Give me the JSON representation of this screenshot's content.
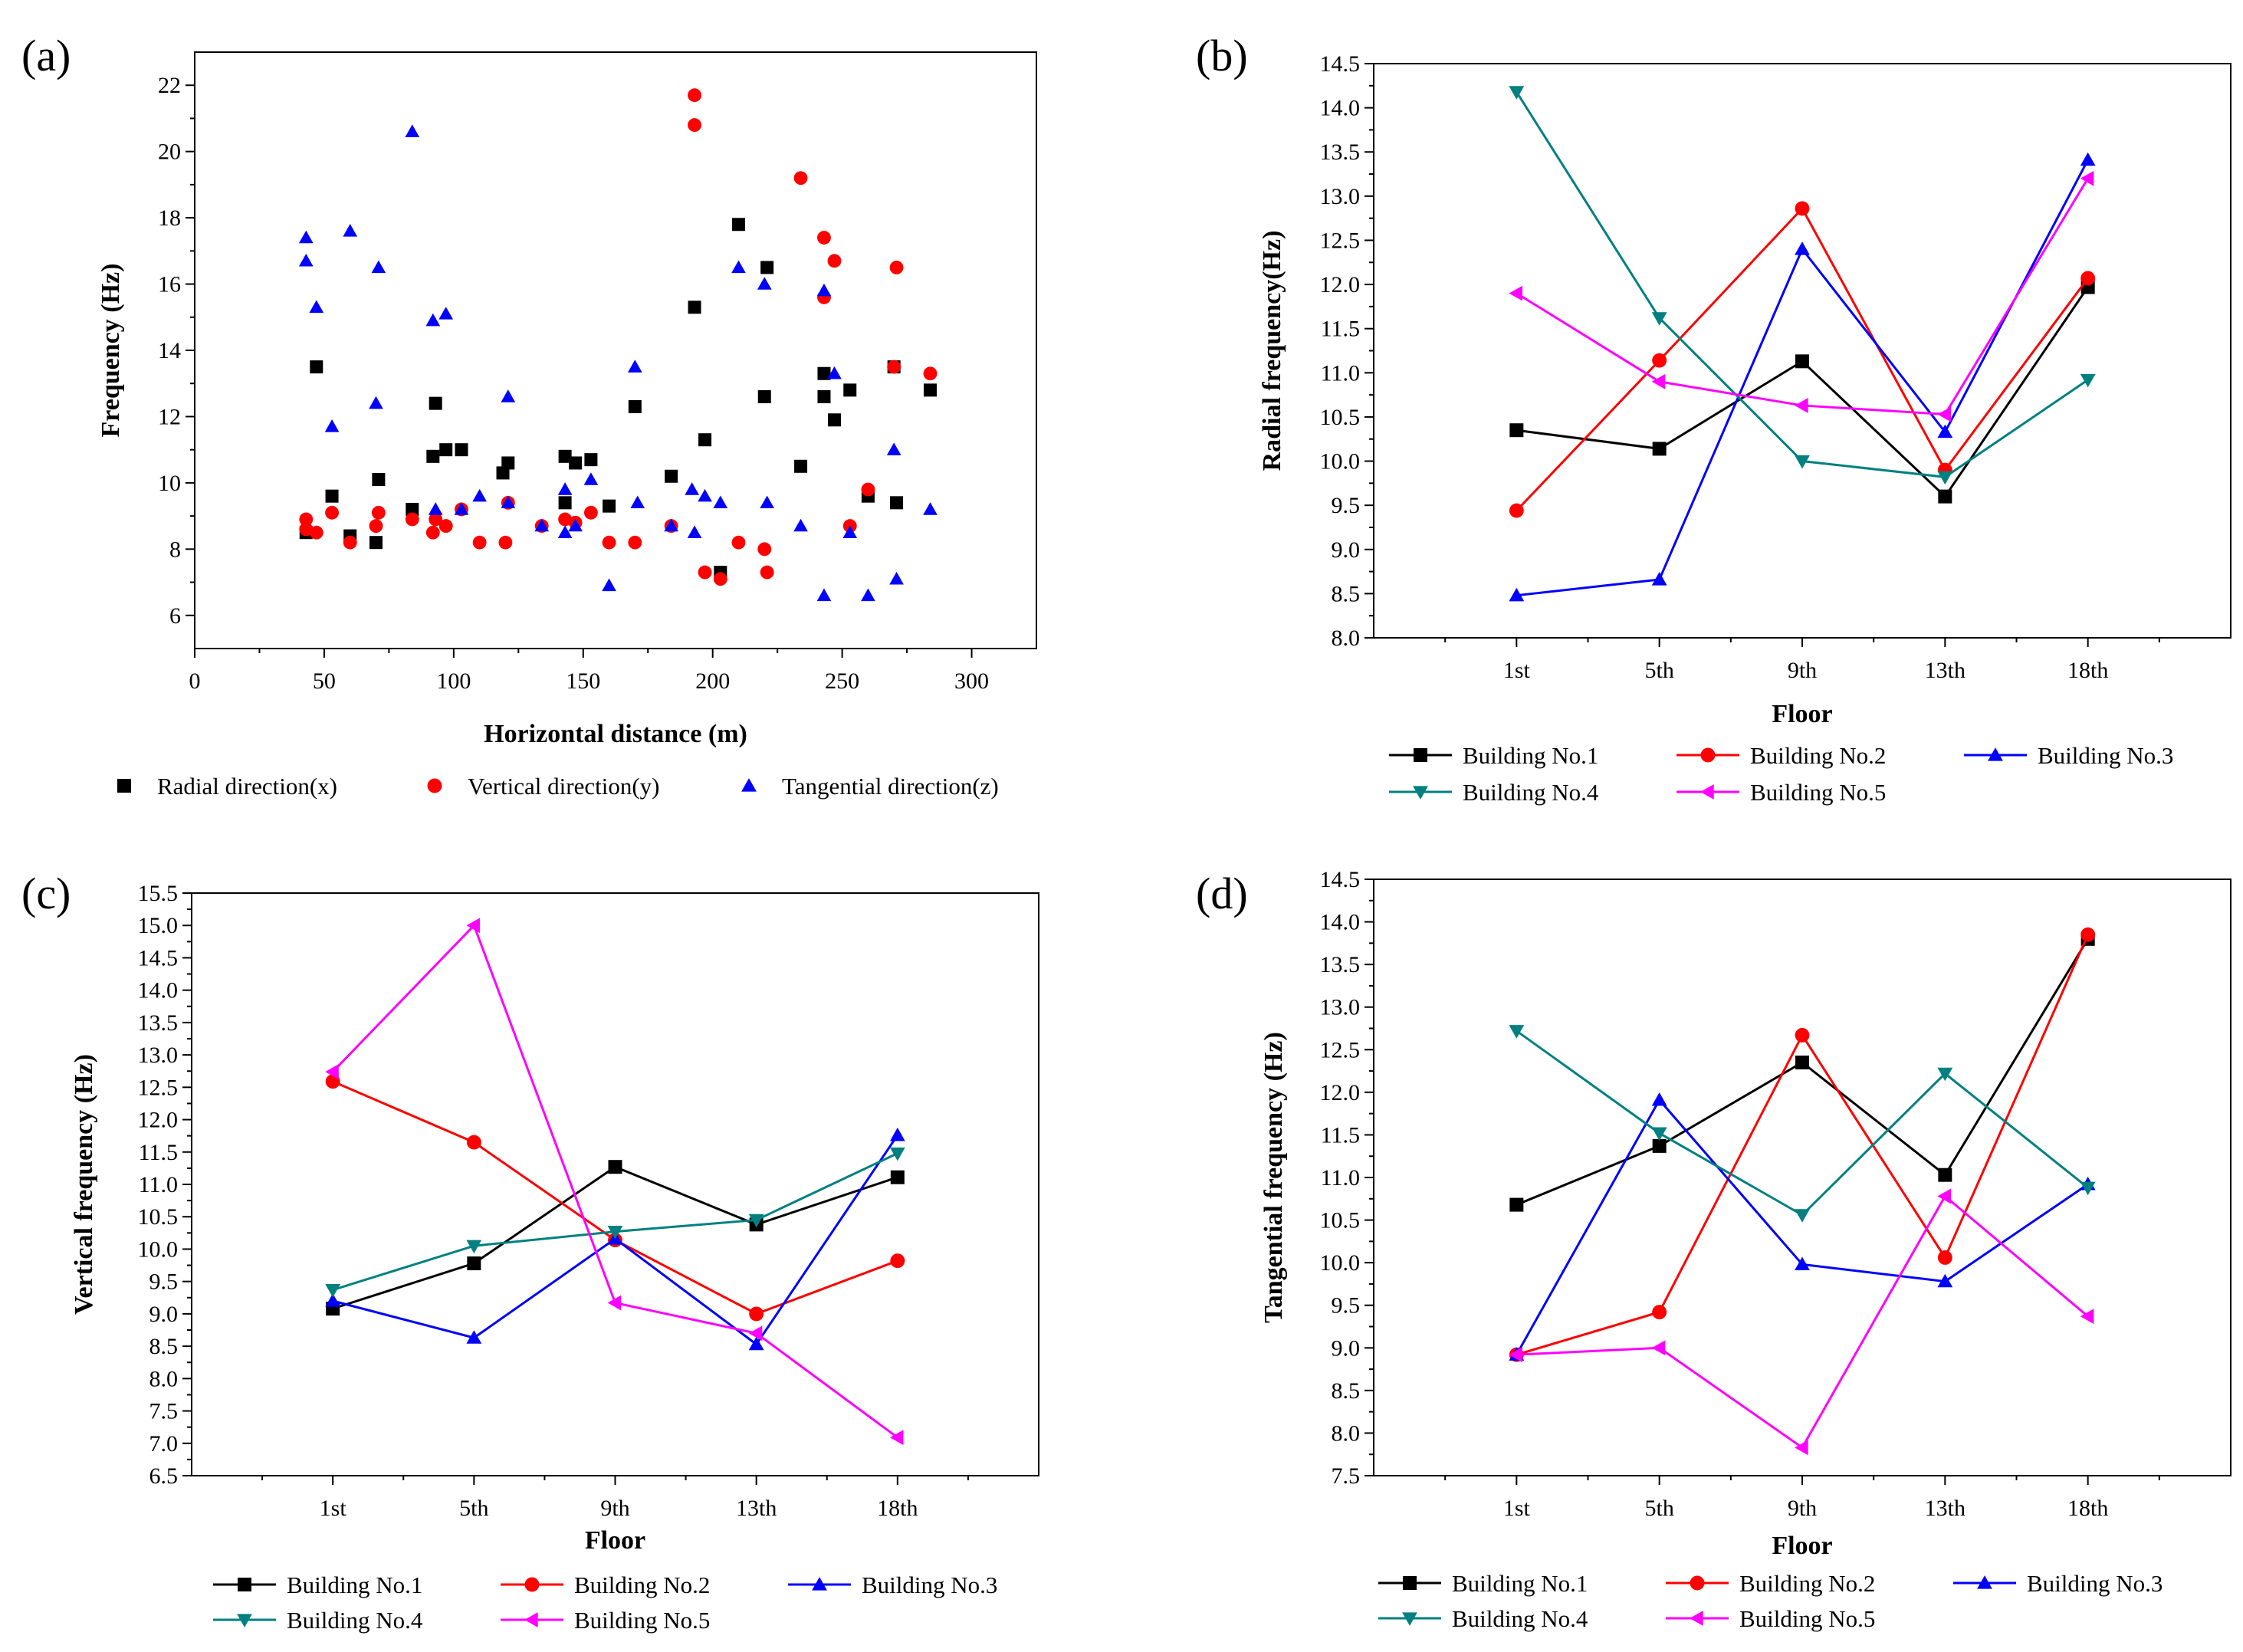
{
  "chart_data": [
    {
      "id": "a",
      "panel_label": "(a)",
      "type": "scatter",
      "xlabel": "Horizontal distance (m)",
      "ylabel": "Frequency (Hz)",
      "xlim": [
        0,
        325
      ],
      "ylim": [
        5,
        23
      ],
      "xticks": [
        "0",
        "50",
        "100",
        "150",
        "200",
        "250",
        "300"
      ],
      "yticks": [
        "6",
        "8",
        "10",
        "12",
        "14",
        "16",
        "18",
        "20",
        "22"
      ],
      "legend_position": "bottom",
      "series": [
        {
          "name": "Radial direction(x)",
          "color": "#000000",
          "marker": "square",
          "points": [
            [
              43,
              8.5
            ],
            [
              47,
              13.5
            ],
            [
              53,
              9.6
            ],
            [
              60,
              8.4
            ],
            [
              70,
              8.2
            ],
            [
              71,
              10.1
            ],
            [
              84,
              9.2
            ],
            [
              92,
              10.8
            ],
            [
              93,
              12.4
            ],
            [
              97,
              11.0
            ],
            [
              103,
              11.0
            ],
            [
              119,
              10.3
            ],
            [
              121,
              10.6
            ],
            [
              143,
              10.8
            ],
            [
              143,
              9.4
            ],
            [
              147,
              10.6
            ],
            [
              153,
              10.7
            ],
            [
              160,
              9.3
            ],
            [
              170,
              12.3
            ],
            [
              184,
              10.2
            ],
            [
              193,
              15.3
            ],
            [
              197,
              11.3
            ],
            [
              203,
              7.3
            ],
            [
              210,
              17.8
            ],
            [
              220,
              12.6
            ],
            [
              221,
              16.5
            ],
            [
              234,
              10.5
            ],
            [
              243,
              13.3
            ],
            [
              243,
              12.6
            ],
            [
              247,
              11.9
            ],
            [
              253,
              12.8
            ],
            [
              260,
              9.6
            ],
            [
              270,
              13.5
            ],
            [
              271,
              9.4
            ],
            [
              284,
              12.8
            ]
          ]
        },
        {
          "name": "Vertical direction(y)",
          "color": "#ff0000",
          "marker": "circle",
          "points": [
            [
              43,
              8.9
            ],
            [
              43,
              8.6
            ],
            [
              47,
              8.5
            ],
            [
              53,
              9.1
            ],
            [
              60,
              8.2
            ],
            [
              70,
              8.7
            ],
            [
              71,
              9.1
            ],
            [
              84,
              8.9
            ],
            [
              92,
              8.5
            ],
            [
              93,
              8.9
            ],
            [
              97,
              8.7
            ],
            [
              103,
              9.2
            ],
            [
              110,
              8.2
            ],
            [
              120,
              8.2
            ],
            [
              121,
              9.4
            ],
            [
              134,
              8.7
            ],
            [
              143,
              8.9
            ],
            [
              147,
              8.8
            ],
            [
              153,
              9.1
            ],
            [
              160,
              8.2
            ],
            [
              170,
              8.2
            ],
            [
              184,
              8.7
            ],
            [
              193,
              21.7
            ],
            [
              193,
              20.8
            ],
            [
              197,
              7.3
            ],
            [
              203,
              7.1
            ],
            [
              210,
              8.2
            ],
            [
              220,
              8.0
            ],
            [
              221,
              7.3
            ],
            [
              234,
              19.2
            ],
            [
              243,
              17.4
            ],
            [
              243,
              15.6
            ],
            [
              247,
              16.7
            ],
            [
              253,
              8.7
            ],
            [
              260,
              9.8
            ],
            [
              270,
              13.5
            ],
            [
              271,
              16.5
            ],
            [
              284,
              13.3
            ]
          ]
        },
        {
          "name": "Tangential direction(z)",
          "color": "#0000ff",
          "marker": "triangle",
          "points": [
            [
              43,
              17.4
            ],
            [
              43,
              16.7
            ],
            [
              47,
              15.3
            ],
            [
              53,
              11.7
            ],
            [
              60,
              17.6
            ],
            [
              71,
              16.5
            ],
            [
              70,
              12.4
            ],
            [
              84,
              20.6
            ],
            [
              92,
              14.9
            ],
            [
              93,
              9.2
            ],
            [
              97,
              15.1
            ],
            [
              103,
              9.2
            ],
            [
              110,
              9.6
            ],
            [
              121,
              12.6
            ],
            [
              121,
              9.4
            ],
            [
              134,
              8.7
            ],
            [
              143,
              9.8
            ],
            [
              143,
              8.5
            ],
            [
              147,
              8.7
            ],
            [
              153,
              10.1
            ],
            [
              160,
              6.9
            ],
            [
              170,
              13.5
            ],
            [
              171,
              9.4
            ],
            [
              184,
              8.7
            ],
            [
              192,
              9.8
            ],
            [
              193,
              8.5
            ],
            [
              197,
              9.6
            ],
            [
              203,
              9.4
            ],
            [
              210,
              16.5
            ],
            [
              220,
              16.0
            ],
            [
              221,
              9.4
            ],
            [
              234,
              8.7
            ],
            [
              243,
              15.8
            ],
            [
              243,
              6.6
            ],
            [
              247,
              13.3
            ],
            [
              253,
              8.5
            ],
            [
              260,
              6.6
            ],
            [
              270,
              11.0
            ],
            [
              271,
              7.1
            ],
            [
              284,
              9.2
            ]
          ]
        }
      ]
    },
    {
      "id": "b",
      "panel_label": "(b)",
      "type": "line",
      "xlabel": "Floor",
      "ylabel": "Radial frequency(Hz)",
      "categories": [
        "1st",
        "5th",
        "9th",
        "13th",
        "18th"
      ],
      "ylim": [
        8.0,
        14.5
      ],
      "yticks": [
        "8.0",
        "8.5",
        "9.0",
        "9.5",
        "10.0",
        "10.5",
        "11.0",
        "11.5",
        "12.0",
        "12.5",
        "13.0",
        "13.5",
        "14.0",
        "14.5"
      ],
      "legend_position": "bottom",
      "series": [
        {
          "name": "Building No.1",
          "color": "#000000",
          "marker": "square",
          "values": [
            10.35,
            10.14,
            11.13,
            9.6,
            11.97
          ]
        },
        {
          "name": "Building No.2",
          "color": "#ff0000",
          "marker": "circle",
          "values": [
            9.44,
            11.14,
            12.86,
            9.9,
            12.07
          ]
        },
        {
          "name": "Building No.3",
          "color": "#0000ff",
          "marker": "triangle-up",
          "values": [
            8.48,
            8.66,
            12.4,
            10.33,
            13.41
          ]
        },
        {
          "name": "Building No.4",
          "color": "#008080",
          "marker": "triangle-down",
          "values": [
            14.18,
            11.62,
            10.0,
            9.82,
            10.92
          ]
        },
        {
          "name": "Building No.5",
          "color": "#ff00ff",
          "marker": "triangle-left",
          "values": [
            11.9,
            10.9,
            10.63,
            10.53,
            13.2
          ]
        }
      ]
    },
    {
      "id": "c",
      "panel_label": "(c)",
      "type": "line",
      "xlabel": "Floor",
      "ylabel": "Vertical frequency (Hz)",
      "categories": [
        "1st",
        "5th",
        "9th",
        "13th",
        "18th"
      ],
      "ylim": [
        6.5,
        15.5
      ],
      "yticks": [
        "6.5",
        "7.0",
        "7.5",
        "8.0",
        "8.5",
        "9.0",
        "9.5",
        "10.0",
        "10.5",
        "11.0",
        "11.5",
        "12.0",
        "12.5",
        "13.0",
        "13.5",
        "14.0",
        "14.5",
        "15.0",
        "15.5"
      ],
      "legend_position": "bottom",
      "series": [
        {
          "name": "Building No.1",
          "color": "#000000",
          "marker": "square",
          "values": [
            9.08,
            9.78,
            11.27,
            10.38,
            11.11
          ]
        },
        {
          "name": "Building No.2",
          "color": "#ff0000",
          "marker": "circle",
          "values": [
            12.59,
            11.65,
            10.14,
            9.0,
            9.82
          ]
        },
        {
          "name": "Building No.3",
          "color": "#0000ff",
          "marker": "triangle-up",
          "values": [
            9.2,
            8.63,
            10.16,
            8.53,
            11.76
          ]
        },
        {
          "name": "Building No.4",
          "color": "#008080",
          "marker": "triangle-down",
          "values": [
            9.37,
            10.05,
            10.27,
            10.45,
            11.48
          ]
        },
        {
          "name": "Building No.5",
          "color": "#ff00ff",
          "marker": "triangle-left",
          "values": [
            12.74,
            15.0,
            9.17,
            8.7,
            7.09
          ]
        }
      ]
    },
    {
      "id": "d",
      "panel_label": "(d)",
      "type": "line",
      "xlabel": "Floor",
      "ylabel": "Tangential frequency (Hz)",
      "categories": [
        "1st",
        "5th",
        "9th",
        "13th",
        "18th"
      ],
      "ylim": [
        7.5,
        14.5
      ],
      "yticks": [
        "7.5",
        "8.0",
        "8.5",
        "9.0",
        "9.5",
        "10.0",
        "10.5",
        "11.0",
        "11.5",
        "12.0",
        "12.5",
        "13.0",
        "13.5",
        "14.0",
        "14.5"
      ],
      "legend_position": "bottom",
      "series": [
        {
          "name": "Building No.1",
          "color": "#000000",
          "marker": "square",
          "values": [
            10.68,
            11.37,
            12.35,
            11.03,
            13.8
          ]
        },
        {
          "name": "Building No.2",
          "color": "#ff0000",
          "marker": "circle",
          "values": [
            8.92,
            9.42,
            12.67,
            10.06,
            13.85
          ]
        },
        {
          "name": "Building No.3",
          "color": "#0000ff",
          "marker": "triangle-up",
          "values": [
            8.92,
            11.91,
            9.98,
            9.78,
            10.92
          ]
        },
        {
          "name": "Building No.4",
          "color": "#008080",
          "marker": "triangle-down",
          "values": [
            12.72,
            11.52,
            10.56,
            12.22,
            10.88
          ]
        },
        {
          "name": "Building No.5",
          "color": "#ff00ff",
          "marker": "triangle-left",
          "values": [
            8.92,
            9.0,
            7.83,
            10.78,
            9.37
          ]
        }
      ]
    }
  ]
}
